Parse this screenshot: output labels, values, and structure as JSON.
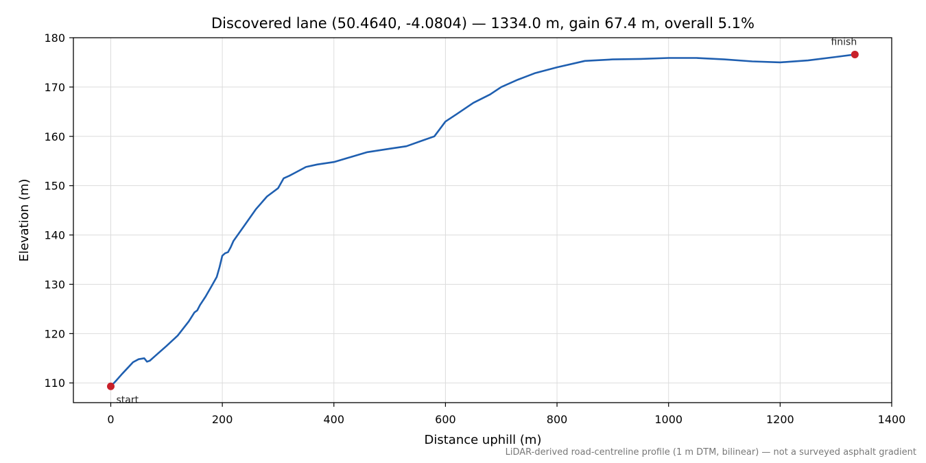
{
  "chart_data": {
    "type": "line",
    "title": "Discovered lane (50.4640, -4.0804) — 1334.0 m, gain 67.4 m, overall 5.1%",
    "xlabel": "Distance uphill (m)",
    "ylabel": "Elevation (m)",
    "xlim": [
      -67,
      1400
    ],
    "ylim": [
      106,
      180
    ],
    "xticks": [
      0,
      200,
      400,
      600,
      800,
      1000,
      1200,
      1400
    ],
    "yticks": [
      110,
      120,
      130,
      140,
      150,
      160,
      170,
      180
    ],
    "grid": true,
    "line_color": "#1f5fb0",
    "marker_color": "#c8202a",
    "series": [
      {
        "x": [
          0,
          10,
          20,
          30,
          40,
          50,
          60,
          65,
          70,
          80,
          100,
          120,
          140,
          150,
          155,
          160,
          170,
          180,
          190,
          195,
          200,
          205,
          210,
          215,
          220,
          240,
          260,
          270,
          280,
          300,
          310,
          320,
          330,
          350,
          370,
          400,
          430,
          460,
          500,
          530,
          560,
          580,
          600,
          620,
          650,
          680,
          700,
          730,
          760,
          800,
          850,
          900,
          950,
          1000,
          1050,
          1100,
          1150,
          1200,
          1250,
          1300,
          1334
        ],
        "y": [
          109.3,
          110.5,
          111.8,
          113,
          114.2,
          114.8,
          115.0,
          114.3,
          114.5,
          115.5,
          117.5,
          119.6,
          122.5,
          124.3,
          124.7,
          125.8,
          127.5,
          129.5,
          131.5,
          133.5,
          135.8,
          136.3,
          136.5,
          137.5,
          138.8,
          142.0,
          145.2,
          146.5,
          147.8,
          149.5,
          151.5,
          152.0,
          152.6,
          153.8,
          154.3,
          154.8,
          155.8,
          156.8,
          157.5,
          158.0,
          159.2,
          160.0,
          163.0,
          164.5,
          166.8,
          168.5,
          170.0,
          171.5,
          172.8,
          174.0,
          175.3,
          175.6,
          175.7,
          175.9,
          175.9,
          175.6,
          175.2,
          175.0,
          175.4,
          176.1,
          176.6
        ]
      }
    ],
    "annotations": [
      {
        "text": "start",
        "x": 0,
        "y": 109.3
      },
      {
        "text": "finish",
        "x": 1334,
        "y": 176.6
      }
    ],
    "note": "LiDAR-derived road-centreline profile (1 m DTM, bilinear) — not a surveyed asphalt gradient"
  }
}
